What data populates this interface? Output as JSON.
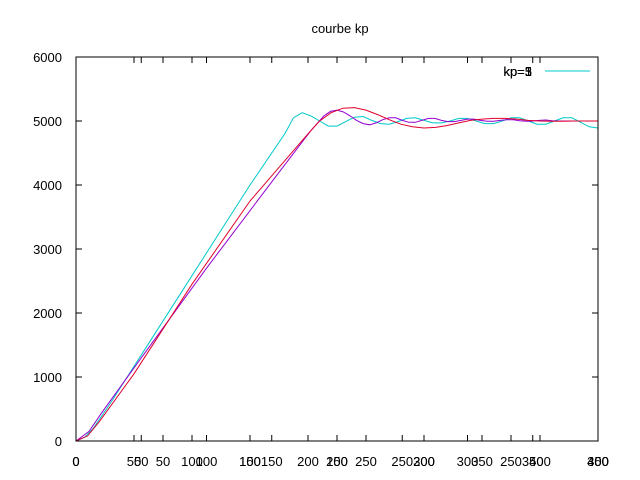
{
  "chart_data": {
    "type": "line",
    "title": "courbe kp",
    "xlabel": "",
    "ylabel": "",
    "grid": false,
    "legend_position": "top-right",
    "ylim": [
      0,
      6000
    ],
    "yticks": [
      0,
      1000,
      2000,
      3000,
      4000,
      5000,
      6000
    ],
    "xtick_layers": [
      {
        "xlim": [
          0,
          300
        ],
        "ticks": [
          0,
          50,
          100,
          150,
          200,
          250,
          300
        ]
      },
      {
        "xlim": [
          0,
          400
        ],
        "ticks": [
          0,
          50,
          100,
          150,
          200,
          250,
          300,
          350,
          400
        ]
      },
      {
        "xlim": [
          0,
          450
        ],
        "ticks": [
          0,
          50,
          100,
          150,
          200,
          250,
          300,
          350,
          400,
          450
        ]
      }
    ],
    "legend_labels": [
      "kp=1",
      "kp=3",
      "kp=5"
    ],
    "series": [
      {
        "color": "#00c8c8",
        "xlim": [
          0,
          300
        ],
        "setpoint": 5000,
        "points": [
          [
            0,
            0
          ],
          [
            5,
            60
          ],
          [
            10,
            200
          ],
          [
            20,
            600
          ],
          [
            40,
            1450
          ],
          [
            60,
            2300
          ],
          [
            80,
            3150
          ],
          [
            100,
            4000
          ],
          [
            120,
            4800
          ],
          [
            125,
            5050
          ],
          [
            130,
            5130
          ],
          [
            135,
            5080
          ],
          [
            140,
            5000
          ],
          [
            145,
            4920
          ],
          [
            150,
            4920
          ],
          [
            155,
            4990
          ],
          [
            160,
            5060
          ],
          [
            165,
            5070
          ],
          [
            170,
            5010
          ],
          [
            175,
            4960
          ],
          [
            180,
            4950
          ],
          [
            185,
            4990
          ],
          [
            190,
            5040
          ],
          [
            195,
            5050
          ],
          [
            200,
            5010
          ],
          [
            205,
            4970
          ],
          [
            210,
            4970
          ],
          [
            215,
            5000
          ],
          [
            220,
            5040
          ],
          [
            225,
            5040
          ],
          [
            230,
            5000
          ],
          [
            235,
            4960
          ],
          [
            240,
            4960
          ],
          [
            245,
            5000
          ],
          [
            250,
            5050
          ],
          [
            255,
            5050
          ],
          [
            260,
            5000
          ],
          [
            265,
            4950
          ],
          [
            270,
            4950
          ],
          [
            275,
            5000
          ],
          [
            280,
            5050
          ],
          [
            285,
            5050
          ],
          [
            290,
            4980
          ],
          [
            295,
            4910
          ],
          [
            300,
            4890
          ]
        ]
      },
      {
        "color": "#9400d3",
        "xlim": [
          0,
          400
        ],
        "setpoint": 5000,
        "points": [
          [
            0,
            0
          ],
          [
            10,
            150
          ],
          [
            20,
            450
          ],
          [
            50,
            1300
          ],
          [
            100,
            2700
          ],
          [
            150,
            4050
          ],
          [
            180,
            4850
          ],
          [
            190,
            5080
          ],
          [
            195,
            5150
          ],
          [
            200,
            5170
          ],
          [
            205,
            5140
          ],
          [
            210,
            5080
          ],
          [
            215,
            5010
          ],
          [
            220,
            4960
          ],
          [
            225,
            4940
          ],
          [
            230,
            4970
          ],
          [
            235,
            5020
          ],
          [
            240,
            5050
          ],
          [
            245,
            5050
          ],
          [
            250,
            5010
          ],
          [
            255,
            4980
          ],
          [
            260,
            4980
          ],
          [
            265,
            5010
          ],
          [
            270,
            5040
          ],
          [
            275,
            5040
          ],
          [
            280,
            5010
          ],
          [
            285,
            4990
          ],
          [
            290,
            4990
          ],
          [
            295,
            5010
          ],
          [
            300,
            5030
          ],
          [
            305,
            5030
          ],
          [
            310,
            5010
          ],
          [
            315,
            4995
          ],
          [
            320,
            4995
          ],
          [
            325,
            5010
          ],
          [
            330,
            5020
          ],
          [
            335,
            5020
          ],
          [
            340,
            5005
          ],
          [
            345,
            4995
          ],
          [
            350,
            5000
          ],
          [
            355,
            5010
          ],
          [
            360,
            5015
          ],
          [
            365,
            5005
          ],
          [
            370,
            5000
          ],
          [
            380,
            5000
          ],
          [
            400,
            5000
          ]
        ]
      },
      {
        "color": "#e0002b",
        "xlim": [
          0,
          450
        ],
        "setpoint": 5000,
        "points": [
          [
            0,
            0
          ],
          [
            10,
            80
          ],
          [
            20,
            300
          ],
          [
            50,
            1050
          ],
          [
            100,
            2450
          ],
          [
            150,
            3750
          ],
          [
            200,
            4800
          ],
          [
            210,
            5000
          ],
          [
            220,
            5130
          ],
          [
            230,
            5200
          ],
          [
            240,
            5210
          ],
          [
            250,
            5170
          ],
          [
            260,
            5100
          ],
          [
            270,
            5020
          ],
          [
            280,
            4950
          ],
          [
            290,
            4910
          ],
          [
            300,
            4890
          ],
          [
            310,
            4900
          ],
          [
            320,
            4930
          ],
          [
            330,
            4970
          ],
          [
            340,
            5010
          ],
          [
            350,
            5030
          ],
          [
            360,
            5040
          ],
          [
            370,
            5040
          ],
          [
            380,
            5030
          ],
          [
            390,
            5010
          ],
          [
            400,
            5000
          ],
          [
            410,
            4995
          ],
          [
            420,
            4995
          ],
          [
            430,
            5000
          ],
          [
            450,
            5000
          ]
        ]
      }
    ]
  }
}
